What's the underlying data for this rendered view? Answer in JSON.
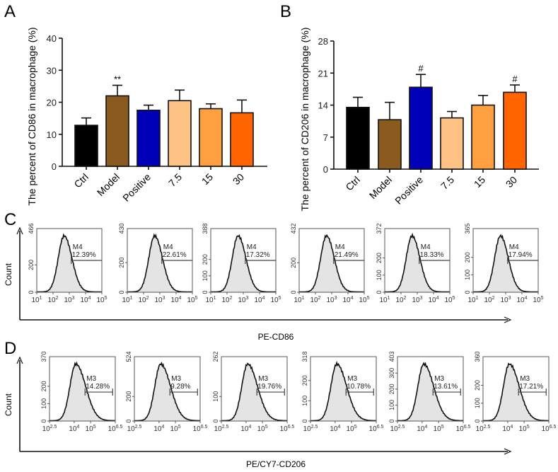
{
  "chart_data": [
    {
      "panel": "A",
      "type": "bar",
      "ylabel": "The percent of CD86 in macrophage (%)",
      "categories": [
        "Ctrl",
        "Model",
        "Positive",
        "7.5",
        "15",
        "30"
      ],
      "values": [
        12.8,
        22.0,
        17.5,
        20.5,
        18.0,
        16.7
      ],
      "errors": [
        2.3,
        3.3,
        1.6,
        3.3,
        1.5,
        4.0
      ],
      "annotations": [
        "",
        "**",
        "",
        "",
        "",
        ""
      ],
      "colors": [
        "#000000",
        "#8B5A1F",
        "#0000B8",
        "#FFC285",
        "#FFA040",
        "#FF6400"
      ],
      "ylim": [
        0,
        40
      ],
      "yticks": [
        0,
        10,
        20,
        30,
        40
      ]
    },
    {
      "panel": "B",
      "type": "bar",
      "ylabel": "The percent of CD206 in macrophage (%)",
      "categories": [
        "Ctrl",
        "Model",
        "Positive",
        "7.5",
        "15",
        "30"
      ],
      "values": [
        13.5,
        10.8,
        17.9,
        11.2,
        14.0,
        16.8
      ],
      "errors": [
        2.2,
        3.8,
        2.8,
        1.4,
        2.1,
        1.6
      ],
      "annotations": [
        "",
        "",
        "#",
        "",
        "",
        "#"
      ],
      "colors": [
        "#000000",
        "#8B5A1F",
        "#0000B8",
        "#FFC285",
        "#FFA040",
        "#FF6400"
      ],
      "ylim": [
        0,
        28
      ],
      "yticks": [
        0,
        7,
        14,
        21,
        28
      ]
    },
    {
      "panel": "C",
      "type": "area",
      "xlabel": "PE-CD86",
      "ylabel": "Count",
      "gate": "M4",
      "xticks": [
        "10^1",
        "10^2",
        "10^3",
        "10^4",
        "10^5"
      ],
      "histograms": [
        {
          "ymax": 466,
          "yticks": [
            0,
            200
          ],
          "percent": "12.39%"
        },
        {
          "ymax": 430,
          "yticks": [
            0,
            200
          ],
          "percent": "22.61%"
        },
        {
          "ymax": 388,
          "yticks": [
            0,
            100,
            200
          ],
          "percent": "17.32%"
        },
        {
          "ymax": 432,
          "yticks": [
            0,
            200
          ],
          "percent": "21.49%"
        },
        {
          "ymax": 372,
          "yticks": [
            0,
            100,
            200
          ],
          "percent": "18.33%"
        },
        {
          "ymax": 365,
          "yticks": [
            0,
            100,
            200
          ],
          "percent": "17.94%"
        }
      ]
    },
    {
      "panel": "D",
      "type": "area",
      "xlabel": "PE/CY7-CD206",
      "ylabel": "Count",
      "gate": "M3",
      "xticks": [
        "10^2.5",
        "10^4",
        "10^5",
        "10^6.5"
      ],
      "histograms": [
        {
          "ymax": 370,
          "yticks": [
            0,
            100,
            200
          ],
          "percent": "14.28%"
        },
        {
          "ymax": 524,
          "yticks": [
            0,
            200
          ],
          "percent": "9.28%"
        },
        {
          "ymax": 262,
          "yticks": [
            0,
            100
          ],
          "percent": "19.76%"
        },
        {
          "ymax": 318,
          "yticks": [
            0,
            100,
            200
          ],
          "percent": "10.78%"
        },
        {
          "ymax": 403,
          "yticks": [
            0,
            100,
            200,
            300
          ],
          "percent": "13.61%"
        },
        {
          "ymax": 360,
          "yticks": [
            0,
            100,
            200
          ],
          "percent": "17.21%"
        }
      ]
    }
  ]
}
